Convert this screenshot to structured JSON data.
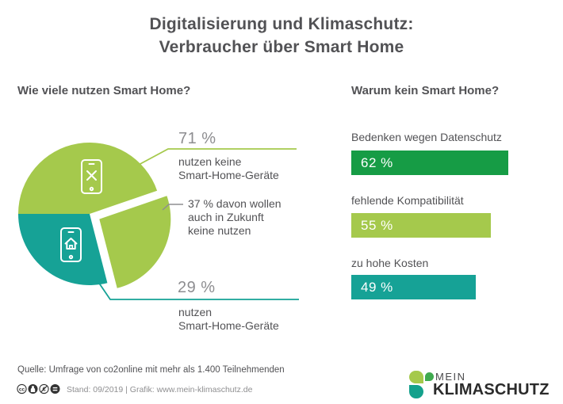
{
  "title": {
    "line1": "Digitalisierung und Klimaschutz:",
    "line2": "Verbraucher über Smart Home"
  },
  "pie_section": {
    "heading": "Wie viele nutzen Smart Home?",
    "label_no": {
      "value": "71 %",
      "line1": "nutzen keine",
      "line2": "Smart-Home-Geräte"
    },
    "label_sub": {
      "line1": "37 % davon wollen",
      "line2": "auch in Zukunft",
      "line3": "keine nutzen"
    },
    "label_yes": {
      "value": "29 %",
      "line1": "nutzen",
      "line2": "Smart-Home-Geräte"
    }
  },
  "bars_section": {
    "heading": "Warum kein Smart Home?",
    "value_labels": [
      "62 %",
      "55 %",
      "49 %"
    ]
  },
  "footer": {
    "source": "Quelle: Umfrage von co2online mit mehr als 1.400 Teilnehmenden",
    "meta": "Stand: 09/2019   |  Grafik: www.mein-klimaschutz.de",
    "license_icons": [
      "cc-icon",
      "by-person-icon",
      "nc-euro-icon",
      "nd-equals-icon"
    ]
  },
  "logo": {
    "word_top": "MEIN",
    "word_bottom": "KLIMASCHUTZ"
  },
  "colors": {
    "light_green": "#a5c94c",
    "teal": "#16a296",
    "dark_green": "#169c45",
    "heading_gray": "#525255",
    "value_gray": "#8d8d90",
    "logo_mid_green": "#3faa4f",
    "logo_teal": "#14a18c"
  },
  "chart_data": [
    {
      "type": "pie",
      "title": "Wie viele nutzen Smart Home?",
      "unit": "%",
      "start_angle_deg": 180,
      "slices": [
        {
          "label": "nutzen keine Smart-Home-Geräte",
          "value": 71,
          "color": "#a5c94c",
          "exploded_sub_wedge": {
            "label": "37 % davon wollen auch in Zukunft keine nutzen",
            "share_of_slice": 37
          }
        },
        {
          "label": "nutzen Smart-Home-Geräte",
          "value": 29,
          "color": "#16a296"
        }
      ]
    },
    {
      "type": "bar",
      "title": "Warum kein Smart Home?",
      "orientation": "horizontal",
      "categories": [
        "Bedenken wegen Datenschutz",
        "fehlende Kompatibilität",
        "zu hohe Kosten"
      ],
      "values": [
        62,
        55,
        49
      ],
      "unit": "%",
      "colors": [
        "#169c45",
        "#a5c94c",
        "#16a296"
      ],
      "xlim": [
        0,
        100
      ],
      "grid": false,
      "legend": false
    }
  ]
}
